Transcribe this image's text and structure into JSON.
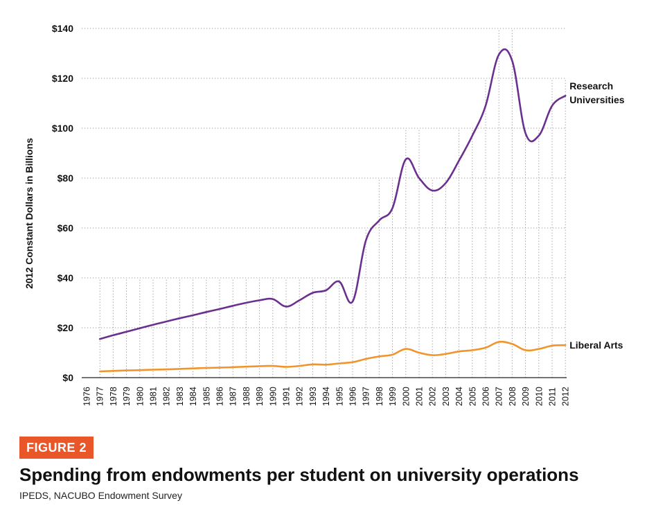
{
  "figure": {
    "badge": "FIGURE 2",
    "title": "Spending from endowments per student on university operations",
    "source": "IPEDS, NACUBO Endowment Survey"
  },
  "chart_data": {
    "type": "line",
    "ylabel": "2012 Constant Dollars in Billions",
    "xlabel": "",
    "ylim": [
      0,
      140
    ],
    "yticks": [
      0,
      20,
      40,
      60,
      80,
      100,
      120,
      140
    ],
    "ytick_labels": [
      "$0",
      "$20",
      "$40",
      "$60",
      "$80",
      "$100",
      "$120",
      "$140"
    ],
    "x": [
      1976,
      1977,
      1978,
      1979,
      1980,
      1981,
      1982,
      1983,
      1984,
      1985,
      1986,
      1987,
      1988,
      1989,
      1990,
      1991,
      1992,
      1993,
      1994,
      1995,
      1996,
      1997,
      1998,
      1999,
      2000,
      2001,
      2002,
      2003,
      2004,
      2005,
      2006,
      2007,
      2008,
      2009,
      2010,
      2011,
      2012
    ],
    "grid": true,
    "series": [
      {
        "name": "Research Universities",
        "label_lines": [
          "Research",
          "Universities"
        ],
        "color": "#6b2f8f",
        "x": [
          1977,
          1978,
          1979,
          1980,
          1981,
          1982,
          1983,
          1984,
          1985,
          1986,
          1987,
          1988,
          1989,
          1990,
          1991,
          1992,
          1993,
          1994,
          1995,
          1996,
          1997,
          1998,
          1999,
          2000,
          2001,
          2002,
          2003,
          2004,
          2005,
          2006,
          2007,
          2008,
          2009,
          2010,
          2011,
          2012
        ],
        "values": [
          15.5,
          17,
          18.4,
          19.8,
          21.2,
          22.5,
          23.8,
          25,
          26.3,
          27.5,
          28.8,
          30,
          31,
          31.5,
          28.5,
          31,
          34,
          35,
          38.5,
          30.5,
          55,
          63,
          68,
          87.5,
          80,
          75,
          78,
          87,
          97,
          109,
          129.5,
          127,
          98,
          97,
          109,
          113
        ]
      },
      {
        "name": "Liberal Arts",
        "label_lines": [
          "Liberal Arts"
        ],
        "color": "#f0942b",
        "x": [
          1977,
          1978,
          1979,
          1980,
          1981,
          1982,
          1983,
          1984,
          1985,
          1986,
          1987,
          1988,
          1989,
          1990,
          1991,
          1992,
          1993,
          1994,
          1995,
          1996,
          1997,
          1998,
          1999,
          2000,
          2001,
          2002,
          2003,
          2004,
          2005,
          2006,
          2007,
          2008,
          2009,
          2010,
          2011,
          2012
        ],
        "values": [
          2.5,
          2.7,
          2.9,
          3.0,
          3.2,
          3.3,
          3.5,
          3.7,
          3.9,
          4.0,
          4.2,
          4.4,
          4.6,
          4.7,
          4.3,
          4.7,
          5.3,
          5.2,
          5.7,
          6.2,
          7.5,
          8.5,
          9.2,
          11.5,
          10.0,
          9.0,
          9.5,
          10.5,
          11.0,
          12.0,
          14.3,
          13.5,
          11.0,
          11.5,
          12.8,
          13.0
        ]
      }
    ]
  }
}
